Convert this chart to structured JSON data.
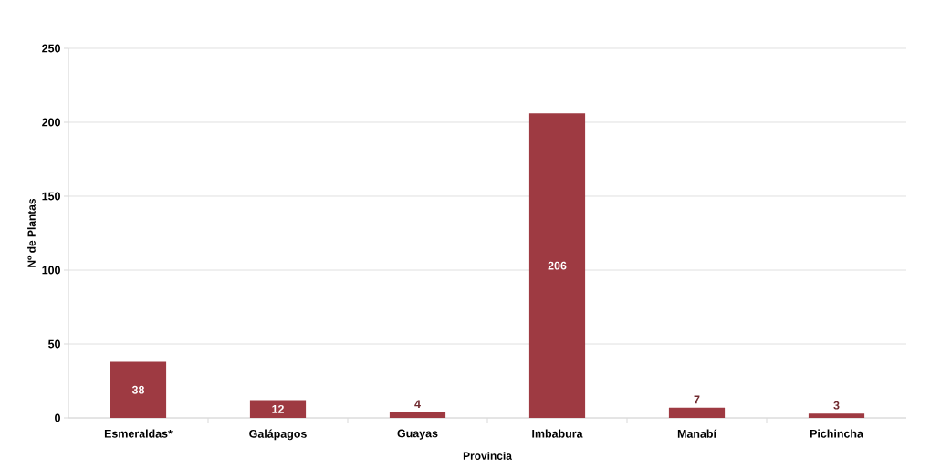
{
  "chart_data": {
    "type": "bar",
    "xlabel": "Provincia",
    "ylabel": "Nº de Plantas",
    "categories": [
      "Esmeraldas*",
      "Galápagos",
      "Guayas",
      "Imbabura",
      "Manabí",
      "Pichincha"
    ],
    "values": [
      38,
      12,
      4,
      206,
      7,
      3
    ],
    "color": "#9e3a42",
    "ylim": [
      0,
      250
    ],
    "yticks": [
      0,
      50,
      100,
      150,
      200,
      250
    ],
    "grid": "y",
    "data_labels": true
  }
}
